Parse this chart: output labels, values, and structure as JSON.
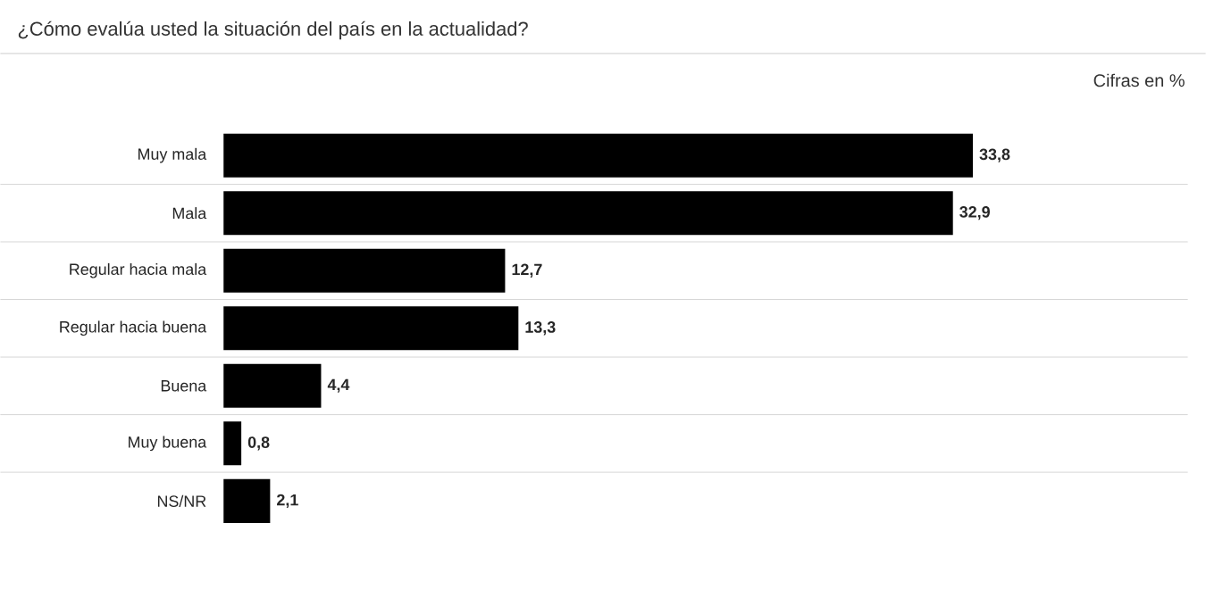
{
  "chart_data": {
    "type": "bar",
    "orientation": "horizontal",
    "title": "¿Cómo evalúa usted la situación del país en la actualidad?",
    "subtitle": "Cifras en %",
    "categories": [
      "Muy mala",
      "Mala",
      "Regular hacia mala",
      "Regular hacia buena",
      "Buena",
      "Muy buena",
      "NS/NR"
    ],
    "values": [
      33.8,
      32.9,
      12.7,
      13.3,
      4.4,
      0.8,
      2.1
    ],
    "value_labels": [
      "33,8",
      "32,9",
      "12,7",
      "13,3",
      "4,4",
      "0,8",
      "2,1"
    ],
    "color": "#000000"
  }
}
